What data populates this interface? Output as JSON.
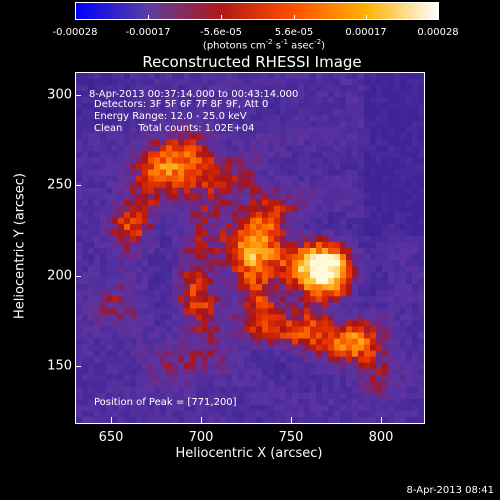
{
  "colorbar": {
    "ticks": [
      "-0.00028",
      "-0.00017",
      "-5.6e-05",
      "5.6e-05",
      "0.00017",
      "0.00028"
    ],
    "unit": {
      "prefix": "(photons cm",
      "exp1": "-2",
      "mid1": " s",
      "exp2": "-1",
      "mid2": " asec",
      "exp3": "-2",
      "suffix": ")"
    },
    "colors": [
      "#0000ff",
      "#5a3ea0",
      "#b01818",
      "#ff5000",
      "#ffb000",
      "#ffffff"
    ]
  },
  "chart_data": {
    "type": "heatmap",
    "title": "Reconstructed RHESSI Image",
    "xlabel": "Heliocentric X (arcsec)",
    "ylabel": "Heliocentric Y (arcsec)",
    "xlim": [
      630,
      824
    ],
    "ylim": [
      115,
      310
    ],
    "x_ticks": [
      650,
      700,
      750,
      800
    ],
    "y_ticks": [
      150,
      200,
      250,
      300
    ],
    "x_tick_labels": [
      "650",
      "700",
      "750",
      "800"
    ],
    "y_tick_labels": [
      "150",
      "200",
      "250",
      "300"
    ],
    "value_range": [
      -0.00028,
      0.00028
    ],
    "peak": [
      771,
      200
    ],
    "annotations": {
      "time": "8-Apr-2013 00:37:14.000 to 00:43:14.000",
      "detectors": "Detectors: 3F 5F 6F 7F 8F 9F, Att 0",
      "energy": "Energy Range: 12.0 - 25.0 keV",
      "clean": "Clean     Total counts: 1.02E+04",
      "peak": "Position of Peak = [771,200]"
    }
  },
  "timestamp": "8-Apr-2013 08:41"
}
